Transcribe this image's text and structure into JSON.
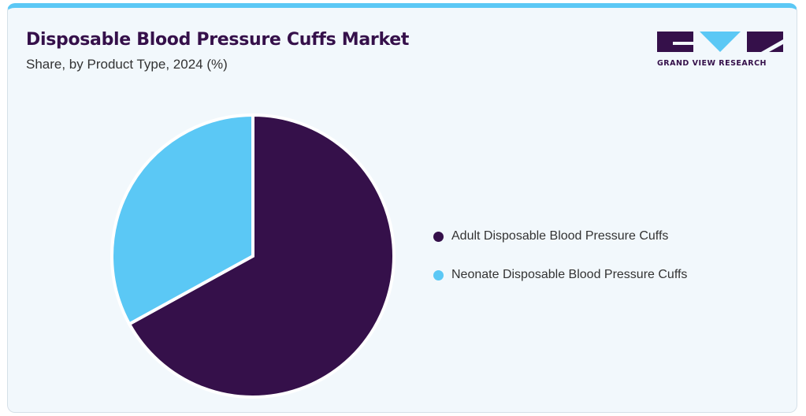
{
  "header": {
    "title": "Disposable Blood Pressure Cuffs Market",
    "subtitle": "Share, by Product Type, 2024 (%)",
    "logo_text": "GRAND VIEW RESEARCH"
  },
  "colors": {
    "adult": "#35104a",
    "neonate": "#5bc8f5",
    "accent": "#5bc8f5",
    "background": "#f2f8fc"
  },
  "chart_data": {
    "type": "pie",
    "title": "Disposable Blood Pressure Cuffs Market",
    "subtitle": "Share, by Product Type, 2024 (%)",
    "legend_position": "right",
    "slices": [
      {
        "label": "Adult Disposable Blood Pressure Cuffs",
        "value": 67,
        "color": "#35104a"
      },
      {
        "label": "Neonate Disposable Blood Pressure Cuffs",
        "value": 33,
        "color": "#5bc8f5"
      }
    ]
  }
}
